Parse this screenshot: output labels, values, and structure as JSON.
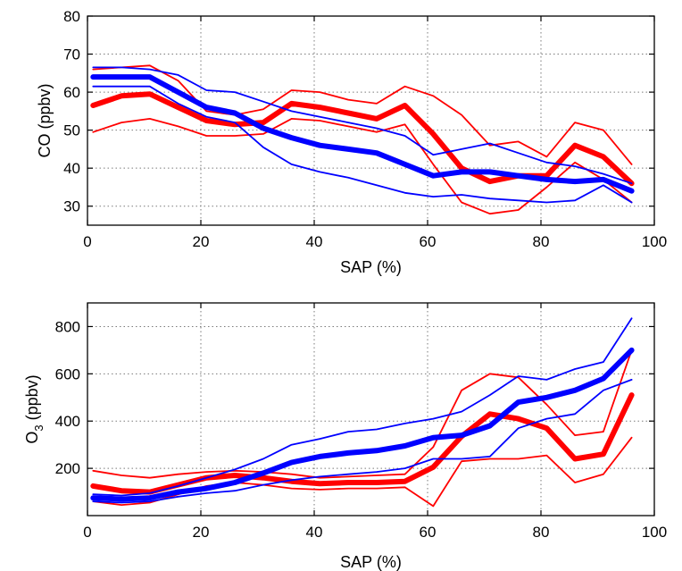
{
  "chart_data": [
    {
      "type": "line",
      "xlabel": "SAP (%)",
      "ylabel": "CO (ppbv)",
      "xlim": [
        0,
        100
      ],
      "ylim": [
        25,
        80
      ],
      "xticks": [
        0,
        20,
        40,
        60,
        80,
        100
      ],
      "yticks": [
        30,
        40,
        50,
        60,
        70,
        80
      ],
      "grid": true,
      "x": [
        1,
        6,
        11,
        16,
        21,
        26,
        31,
        36,
        41,
        46,
        51,
        56,
        61,
        66,
        71,
        76,
        81,
        86,
        91,
        96
      ],
      "series": [
        {
          "color": "#ff0000",
          "width": "thick",
          "values": [
            56.5,
            59,
            59.5,
            56,
            52.5,
            51.5,
            52,
            57,
            56,
            54.5,
            53,
            56.5,
            49,
            40,
            36.5,
            38,
            38,
            46,
            43,
            36
          ]
        },
        {
          "color": "#ff0000",
          "width": "thin",
          "values": [
            66,
            66.5,
            67,
            63,
            55,
            54,
            55.5,
            60.5,
            60,
            58,
            57,
            61.5,
            59,
            54,
            46,
            47,
            43,
            52,
            50,
            41
          ]
        },
        {
          "color": "#ff0000",
          "width": "thin",
          "values": [
            49.5,
            52,
            53,
            51,
            48.5,
            48.5,
            49,
            53,
            52.5,
            51,
            49.5,
            51.5,
            41,
            31,
            28,
            29,
            35,
            41.5,
            37,
            31
          ]
        },
        {
          "color": "#0000ff",
          "width": "thick",
          "values": [
            64,
            64,
            64,
            60,
            56,
            54.5,
            50.5,
            48,
            46,
            45,
            44,
            41,
            38,
            39,
            39,
            38,
            37,
            36.5,
            37,
            34
          ]
        },
        {
          "color": "#0000ff",
          "width": "thin",
          "values": [
            66.5,
            66.5,
            66,
            64.5,
            60.5,
            60,
            57.5,
            55,
            53.5,
            52,
            50.5,
            48.5,
            43.5,
            45,
            46.5,
            44,
            41.5,
            40.5,
            38.5,
            36
          ]
        },
        {
          "color": "#0000ff",
          "width": "thin",
          "values": [
            61.5,
            61.5,
            61.5,
            57,
            53.5,
            52,
            45.5,
            41,
            39,
            37.5,
            35.5,
            33.5,
            32.5,
            33,
            32,
            31.5,
            31,
            31.5,
            35.5,
            31
          ]
        }
      ]
    },
    {
      "type": "line",
      "xlabel": "SAP (%)",
      "ylabel": "O",
      "ylabel_sub": "3",
      "ylabel_rest": " (ppbv)",
      "xlim": [
        0,
        100
      ],
      "ylim": [
        0,
        900
      ],
      "xticks": [
        0,
        20,
        40,
        60,
        80,
        100
      ],
      "yticks": [
        200,
        400,
        600,
        800
      ],
      "grid": true,
      "x": [
        1,
        6,
        11,
        16,
        21,
        26,
        31,
        36,
        41,
        46,
        51,
        56,
        61,
        66,
        71,
        76,
        81,
        86,
        91,
        96
      ],
      "series": [
        {
          "color": "#ff0000",
          "width": "thick",
          "values": [
            125,
            105,
            100,
            130,
            160,
            170,
            160,
            145,
            135,
            140,
            140,
            145,
            205,
            335,
            430,
            410,
            370,
            240,
            260,
            510
          ]
        },
        {
          "color": "#ff0000",
          "width": "thin",
          "values": [
            190,
            170,
            160,
            175,
            185,
            190,
            185,
            175,
            160,
            165,
            170,
            175,
            290,
            530,
            600,
            585,
            470,
            340,
            355,
            700
          ]
        },
        {
          "color": "#ff0000",
          "width": "thin",
          "values": [
            60,
            45,
            55,
            90,
            125,
            140,
            130,
            115,
            110,
            115,
            115,
            120,
            40,
            230,
            240,
            240,
            255,
            140,
            175,
            330
          ]
        },
        {
          "color": "#0000ff",
          "width": "thick",
          "values": [
            75,
            70,
            75,
            100,
            115,
            140,
            180,
            225,
            250,
            265,
            275,
            295,
            330,
            340,
            380,
            480,
            500,
            530,
            580,
            700
          ]
        },
        {
          "color": "#0000ff",
          "width": "thin",
          "values": [
            90,
            85,
            95,
            125,
            160,
            195,
            240,
            300,
            325,
            355,
            365,
            390,
            410,
            440,
            510,
            590,
            575,
            620,
            650,
            835
          ]
        },
        {
          "color": "#0000ff",
          "width": "thin",
          "values": [
            60,
            55,
            60,
            80,
            95,
            105,
            130,
            150,
            165,
            175,
            185,
            200,
            240,
            240,
            250,
            370,
            410,
            430,
            530,
            575
          ]
        }
      ]
    }
  ]
}
